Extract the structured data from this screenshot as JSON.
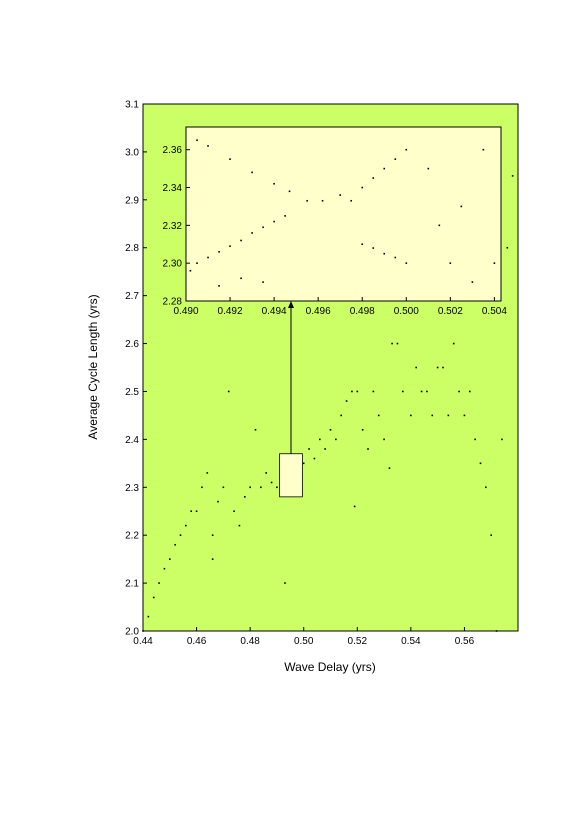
{
  "colors": {
    "main_bg": "#ccff66",
    "inset_bg": "#ffffcc",
    "points": "#000000",
    "axis": "#000000"
  },
  "chart_data": [
    {
      "id": "main",
      "type": "scatter",
      "xlabel": "Wave Delay (yrs)",
      "ylabel": "Average Cycle Length (yrs)",
      "xlim": [
        0.44,
        0.58
      ],
      "ylim": [
        2.0,
        3.1
      ],
      "xticks": [
        "0.44",
        "0.46",
        "0.48",
        "0.50",
        "0.52",
        "0.54",
        "0.56"
      ],
      "yticks": [
        "2.0",
        "2.1",
        "2.2",
        "2.3",
        "2.4",
        "2.5",
        "2.6",
        "2.7",
        "2.8",
        "2.9",
        "3.0",
        "3.1"
      ],
      "grid": false,
      "zoom_box": {
        "x": [
          0.491,
          0.4995
        ],
        "y": [
          2.28,
          2.37
        ]
      },
      "points": [
        [
          0.44,
          2.0
        ],
        [
          0.442,
          2.03
        ],
        [
          0.444,
          2.07
        ],
        [
          0.446,
          2.1
        ],
        [
          0.448,
          2.13
        ],
        [
          0.45,
          2.15
        ],
        [
          0.452,
          2.18
        ],
        [
          0.454,
          2.2
        ],
        [
          0.456,
          2.22
        ],
        [
          0.458,
          2.25
        ],
        [
          0.46,
          2.25
        ],
        [
          0.462,
          2.3
        ],
        [
          0.464,
          2.33
        ],
        [
          0.466,
          2.15
        ],
        [
          0.466,
          2.2
        ],
        [
          0.468,
          2.27
        ],
        [
          0.47,
          2.3
        ],
        [
          0.472,
          2.5
        ],
        [
          0.474,
          2.25
        ],
        [
          0.476,
          2.22
        ],
        [
          0.478,
          2.28
        ],
        [
          0.48,
          2.3
        ],
        [
          0.482,
          2.42
        ],
        [
          0.484,
          2.3
        ],
        [
          0.486,
          2.33
        ],
        [
          0.488,
          2.31
        ],
        [
          0.49,
          2.3
        ],
        [
          0.492,
          2.32
        ],
        [
          0.493,
          2.1
        ],
        [
          0.494,
          2.34
        ],
        [
          0.496,
          2.33
        ],
        [
          0.498,
          2.36
        ],
        [
          0.5,
          2.35
        ],
        [
          0.502,
          2.38
        ],
        [
          0.504,
          2.36
        ],
        [
          0.506,
          2.4
        ],
        [
          0.508,
          2.38
        ],
        [
          0.51,
          2.42
        ],
        [
          0.512,
          2.4
        ],
        [
          0.514,
          2.45
        ],
        [
          0.516,
          2.48
        ],
        [
          0.518,
          2.5
        ],
        [
          0.519,
          2.26
        ],
        [
          0.52,
          2.5
        ],
        [
          0.522,
          2.42
        ],
        [
          0.524,
          2.38
        ],
        [
          0.526,
          2.5
        ],
        [
          0.528,
          2.45
        ],
        [
          0.53,
          2.4
        ],
        [
          0.532,
          2.34
        ],
        [
          0.533,
          2.6
        ],
        [
          0.535,
          2.6
        ],
        [
          0.537,
          2.5
        ],
        [
          0.54,
          2.45
        ],
        [
          0.542,
          2.55
        ],
        [
          0.544,
          2.5
        ],
        [
          0.546,
          2.5
        ],
        [
          0.548,
          2.45
        ],
        [
          0.55,
          2.55
        ],
        [
          0.552,
          2.55
        ],
        [
          0.554,
          2.45
        ],
        [
          0.556,
          2.6
        ],
        [
          0.558,
          2.5
        ],
        [
          0.56,
          2.45
        ],
        [
          0.562,
          2.5
        ],
        [
          0.564,
          2.4
        ],
        [
          0.566,
          2.35
        ],
        [
          0.568,
          2.3
        ],
        [
          0.57,
          2.2
        ],
        [
          0.572,
          2.0
        ],
        [
          0.574,
          2.4
        ],
        [
          0.576,
          2.8
        ],
        [
          0.578,
          2.95
        ]
      ]
    },
    {
      "id": "inset",
      "type": "scatter",
      "xlim": [
        0.49,
        0.5043
      ],
      "ylim": [
        2.28,
        2.372
      ],
      "xticks": [
        "0.490",
        "0.492",
        "0.494",
        "0.496",
        "0.498",
        "0.500",
        "0.502",
        "0.504"
      ],
      "yticks": [
        "2.28",
        "2.30",
        "2.32",
        "2.34",
        "2.36"
      ],
      "grid": false,
      "points": [
        [
          0.4902,
          2.296
        ],
        [
          0.4905,
          2.3
        ],
        [
          0.491,
          2.303
        ],
        [
          0.4915,
          2.306
        ],
        [
          0.492,
          2.309
        ],
        [
          0.4925,
          2.312
        ],
        [
          0.493,
          2.316
        ],
        [
          0.4935,
          2.319
        ],
        [
          0.494,
          2.322
        ],
        [
          0.4945,
          2.325
        ],
        [
          0.4905,
          2.365
        ],
        [
          0.491,
          2.362
        ],
        [
          0.492,
          2.355
        ],
        [
          0.493,
          2.348
        ],
        [
          0.494,
          2.342
        ],
        [
          0.4947,
          2.338
        ],
        [
          0.4955,
          2.333
        ],
        [
          0.4962,
          2.333
        ],
        [
          0.497,
          2.336
        ],
        [
          0.4975,
          2.333
        ],
        [
          0.498,
          2.34
        ],
        [
          0.4985,
          2.345
        ],
        [
          0.499,
          2.35
        ],
        [
          0.4995,
          2.355
        ],
        [
          0.5,
          2.36
        ],
        [
          0.498,
          2.31
        ],
        [
          0.4985,
          2.308
        ],
        [
          0.499,
          2.305
        ],
        [
          0.4995,
          2.303
        ],
        [
          0.5,
          2.3
        ],
        [
          0.501,
          2.35
        ],
        [
          0.5015,
          2.32
        ],
        [
          0.502,
          2.3
        ],
        [
          0.5025,
          2.33
        ],
        [
          0.503,
          2.29
        ],
        [
          0.5035,
          2.36
        ],
        [
          0.504,
          2.3
        ],
        [
          0.4915,
          2.288
        ],
        [
          0.4925,
          2.292
        ],
        [
          0.4935,
          2.29
        ]
      ]
    }
  ]
}
